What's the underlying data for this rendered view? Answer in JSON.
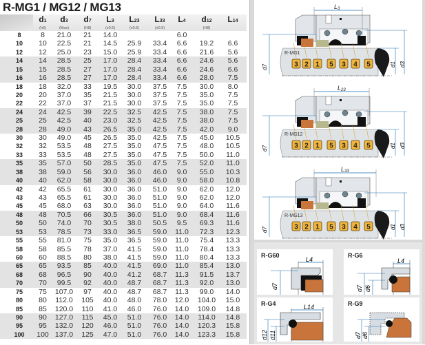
{
  "title": "R-MG1 / MG12 / MG13",
  "columns": [
    {
      "name": "d",
      "sub": "1",
      "tol": "(h6)"
    },
    {
      "name": "d",
      "sub": "3",
      "tol": "(Max)"
    },
    {
      "name": "d",
      "sub": "7",
      "tol": "(H8)"
    },
    {
      "name": "L",
      "sub": "3",
      "tol": "(±0.5)"
    },
    {
      "name": "L",
      "sub": "23",
      "tol": "(±0.5)"
    },
    {
      "name": "L",
      "sub": "33",
      "tol": "(±0.5)"
    },
    {
      "name": "L",
      "sub": "4",
      "tol": ""
    },
    {
      "name": "d",
      "sub": "12",
      "tol": "(H8)"
    },
    {
      "name": "L",
      "sub": "14",
      "tol": ""
    }
  ],
  "rows": [
    [
      "8",
      "8",
      "21.0",
      "21",
      "14.0",
      "",
      "",
      "6.0",
      "",
      ""
    ],
    [
      "10",
      "10",
      "22.5",
      "21",
      "14.5",
      "25.9",
      "33.4",
      "6.6",
      "19.2",
      "6.6"
    ],
    [
      "12",
      "12",
      "25.0",
      "23",
      "15.0",
      "25.9",
      "33.4",
      "6.6",
      "21.6",
      "5.6"
    ],
    [
      "14",
      "14",
      "28.5",
      "25",
      "17.0",
      "28.4",
      "33.4",
      "6.6",
      "24.6",
      "5.6"
    ],
    [
      "15",
      "15",
      "28.5",
      "27",
      "17.0",
      "28.4",
      "33.4",
      "6.6",
      "24.6",
      "6.6"
    ],
    [
      "16",
      "16",
      "28.5",
      "27",
      "17.0",
      "28.4",
      "33.4",
      "6.6",
      "28.0",
      "7.5"
    ],
    [
      "18",
      "18",
      "32.0",
      "33",
      "19.5",
      "30.0",
      "37.5",
      "7.5",
      "30.0",
      "8.0"
    ],
    [
      "20",
      "20",
      "37.0",
      "35",
      "21.5",
      "30.0",
      "37.5",
      "7.5",
      "35.0",
      "7.5"
    ],
    [
      "22",
      "22",
      "37.0",
      "37",
      "21.5",
      "30.0",
      "37.5",
      "7.5",
      "35.0",
      "7.5"
    ],
    [
      "24",
      "24",
      "42.5",
      "39",
      "22.5",
      "32.5",
      "42.5",
      "7.5",
      "38.0",
      "7.5"
    ],
    [
      "25",
      "25",
      "42.5",
      "40",
      "23.0",
      "32.5",
      "42.5",
      "7.5",
      "38.0",
      "7.5"
    ],
    [
      "28",
      "28",
      "49.0",
      "43",
      "26.5",
      "35.0",
      "42.5",
      "7.5",
      "42.0",
      "9.0"
    ],
    [
      "30",
      "30",
      "49.0",
      "45",
      "26.5",
      "35.0",
      "42.5",
      "7.5",
      "45.0",
      "10.5"
    ],
    [
      "32",
      "32",
      "53.5",
      "48",
      "27.5",
      "35.0",
      "47.5",
      "7.5",
      "48.0",
      "10.5"
    ],
    [
      "33",
      "33",
      "53.5",
      "48",
      "27.5",
      "35.0",
      "47.5",
      "7.5",
      "50.0",
      "11.0"
    ],
    [
      "35",
      "35",
      "57.0",
      "50",
      "28.5",
      "35.0",
      "47.5",
      "7.5",
      "52.0",
      "11.0"
    ],
    [
      "38",
      "38",
      "59.0",
      "56",
      "30.0",
      "36.0",
      "46.0",
      "9.0",
      "55.0",
      "10.3"
    ],
    [
      "40",
      "40",
      "62.0",
      "58",
      "30.0",
      "36.0",
      "46.0",
      "9.0",
      "58.0",
      "10.8"
    ],
    [
      "42",
      "42",
      "65.5",
      "61",
      "30.0",
      "36.0",
      "51.0",
      "9.0",
      "62.0",
      "12.0"
    ],
    [
      "43",
      "43",
      "65.5",
      "61",
      "30.0",
      "36.0",
      "51.0",
      "9.0",
      "62.0",
      "12.0"
    ],
    [
      "45",
      "45",
      "68.0",
      "63",
      "30.0",
      "36.0",
      "51.0",
      "9.0",
      "64.0",
      "11.6"
    ],
    [
      "48",
      "48",
      "70.5",
      "66",
      "30.5",
      "36.0",
      "51.0",
      "9.0",
      "68.4",
      "11.6"
    ],
    [
      "50",
      "50",
      "74.0",
      "70",
      "30.5",
      "38.0",
      "50.5",
      "9.5",
      "69.3",
      "11.6"
    ],
    [
      "53",
      "53",
      "78.5",
      "73",
      "33.0",
      "36.5",
      "59.0",
      "11.0",
      "72.3",
      "12.3"
    ],
    [
      "55",
      "55",
      "81.0",
      "75",
      "35.0",
      "36.5",
      "59.0",
      "11.0",
      "75.4",
      "13.3"
    ],
    [
      "58",
      "58",
      "85.5",
      "78",
      "37.0",
      "41.5",
      "59.0",
      "11.0",
      "78.4",
      "13.3"
    ],
    [
      "60",
      "60",
      "88.5",
      "80",
      "38.0",
      "41.5",
      "59.0",
      "11.0",
      "80.4",
      "13.3"
    ],
    [
      "65",
      "65",
      "93.5",
      "85",
      "40.0",
      "41.5",
      "69.0",
      "11.0",
      "85.4",
      "13.0"
    ],
    [
      "68",
      "68",
      "96.5",
      "90",
      "40.0",
      "41.2",
      "68.7",
      "11.3",
      "91.5",
      "13.7"
    ],
    [
      "70",
      "70",
      "99.5",
      "92",
      "40.0",
      "48.7",
      "68.7",
      "11.3",
      "92.0",
      "13.0"
    ],
    [
      "75",
      "75",
      "107.0",
      "97",
      "40.0",
      "48.7",
      "68.7",
      "11.3",
      "99.0",
      "14.0"
    ],
    [
      "80",
      "80",
      "112.0",
      "105",
      "40.0",
      "48.0",
      "78.0",
      "12.0",
      "104.0",
      "15.0"
    ],
    [
      "85",
      "85",
      "120.0",
      "110",
      "41.0",
      "46.0",
      "76.0",
      "14.0",
      "109.0",
      "14.8"
    ],
    [
      "90",
      "90",
      "127.0",
      "115",
      "45.0",
      "51.0",
      "76.0",
      "14.0",
      "114.0",
      "14.8"
    ],
    [
      "95",
      "95",
      "132.0",
      "120",
      "46.0",
      "51.0",
      "76.0",
      "14.0",
      "120.3",
      "15.8"
    ],
    [
      "100",
      "100",
      "137.0",
      "125",
      "47.0",
      "51.0",
      "76.0",
      "14.0",
      "123.3",
      "15.8"
    ]
  ],
  "diagrams": [
    {
      "model": "R-MG1",
      "length_label": "L",
      "length_sub": "3",
      "parts": [
        "3",
        "2",
        "1",
        "5",
        "3",
        "4",
        "5"
      ]
    },
    {
      "model": "R-MG12",
      "length_label": "L",
      "length_sub": "23",
      "parts": [
        "3",
        "2",
        "1",
        "5",
        "3",
        "4",
        "5"
      ]
    },
    {
      "model": "R-MG13",
      "length_label": "L",
      "length_sub": "33",
      "parts": [
        "3",
        "2",
        "1",
        "5",
        "3",
        "4",
        "5"
      ]
    }
  ],
  "dim_labels": {
    "d7": "d7",
    "d1": "d1",
    "d3": "d3",
    "d6": "d6",
    "d11": "d11",
    "d12": "d12",
    "L4": "L4",
    "L14": "L14"
  },
  "seats": [
    {
      "name": "R-G60"
    },
    {
      "name": "R-G6"
    },
    {
      "name": "R-G4"
    },
    {
      "name": "R-G9"
    }
  ],
  "colors": {
    "accent": "#1a6fb5",
    "part_badge": "#f0b43c",
    "seat": "#c8743a",
    "elastomer": "#111111",
    "steel": "#d7dde2"
  }
}
